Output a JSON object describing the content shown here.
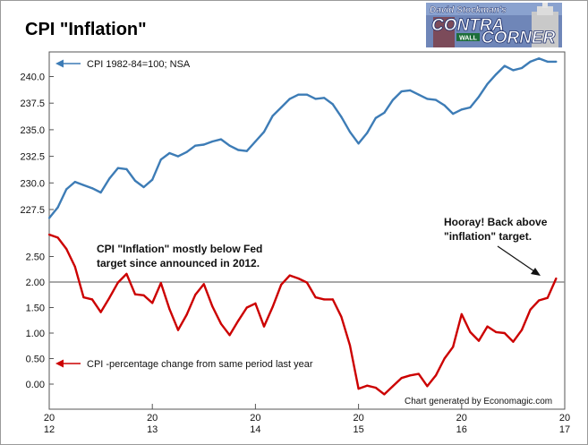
{
  "title": "CPI \"Inflation\"",
  "logo": {
    "line1": "David Stockman's",
    "line2": "CONTRA",
    "line3": "CORNER",
    "sign": "WALL"
  },
  "footer": "Chart generated by Economagic.com",
  "colors": {
    "cpi_level": "#3d7cb6",
    "cpi_yoy": "#cc0000",
    "target_line": "#8c8c8c",
    "grid_frame": "#555555"
  },
  "chart_data": [
    {
      "type": "line",
      "name": "CPI 1982-84=100; NSA",
      "legend_label": "CPI 1982-84=100; NSA",
      "yticks": [
        "227.5",
        "230.0",
        "232.5",
        "235.0",
        "237.5",
        "240.0"
      ],
      "ylim": [
        225.8,
        242.0
      ],
      "x": [
        "2012-01",
        "2012-02",
        "2012-03",
        "2012-04",
        "2012-05",
        "2012-06",
        "2012-07",
        "2012-08",
        "2012-09",
        "2012-10",
        "2012-11",
        "2012-12",
        "2013-01",
        "2013-02",
        "2013-03",
        "2013-04",
        "2013-05",
        "2013-06",
        "2013-07",
        "2013-08",
        "2013-09",
        "2013-10",
        "2013-11",
        "2013-12",
        "2014-01",
        "2014-02",
        "2014-03",
        "2014-04",
        "2014-05",
        "2014-06",
        "2014-07",
        "2014-08",
        "2014-09",
        "2014-10",
        "2014-11",
        "2014-12",
        "2015-01",
        "2015-02",
        "2015-03",
        "2015-04",
        "2015-05",
        "2015-06",
        "2015-07",
        "2015-08",
        "2015-09",
        "2015-10",
        "2015-11",
        "2015-12",
        "2016-01",
        "2016-02",
        "2016-03",
        "2016-04",
        "2016-05",
        "2016-06",
        "2016-07",
        "2016-08",
        "2016-09",
        "2016-10",
        "2016-11",
        "2016-12"
      ],
      "values": [
        226.7,
        227.7,
        229.4,
        230.1,
        229.8,
        229.5,
        229.1,
        230.4,
        231.4,
        231.3,
        230.2,
        229.6,
        230.3,
        232.2,
        232.8,
        232.5,
        232.9,
        233.5,
        233.6,
        233.9,
        234.1,
        233.5,
        233.1,
        233.0,
        233.9,
        234.8,
        236.3,
        237.1,
        237.9,
        238.3,
        238.3,
        237.9,
        238.0,
        237.4,
        236.2,
        234.8,
        233.7,
        234.7,
        236.1,
        236.6,
        237.8,
        238.6,
        238.7,
        238.3,
        237.9,
        237.8,
        237.3,
        236.5,
        236.9,
        237.1,
        238.1,
        239.3,
        240.2,
        241.0,
        240.6,
        240.8,
        241.4,
        241.7,
        241.4,
        241.4
      ]
    },
    {
      "type": "line",
      "name": "CPI -percentage change from same period last year",
      "legend_label": "CPI -percentage change from same period last year",
      "yticks": [
        "0.00",
        "0.50",
        "1.00",
        "1.50",
        "2.00",
        "2.50"
      ],
      "ylim": [
        -0.6,
        2.95
      ],
      "target": 2.0,
      "x": [
        "2012-01",
        "2012-02",
        "2012-03",
        "2012-04",
        "2012-05",
        "2012-06",
        "2012-07",
        "2012-08",
        "2012-09",
        "2012-10",
        "2012-11",
        "2012-12",
        "2013-01",
        "2013-02",
        "2013-03",
        "2013-04",
        "2013-05",
        "2013-06",
        "2013-07",
        "2013-08",
        "2013-09",
        "2013-10",
        "2013-11",
        "2013-12",
        "2014-01",
        "2014-02",
        "2014-03",
        "2014-04",
        "2014-05",
        "2014-06",
        "2014-07",
        "2014-08",
        "2014-09",
        "2014-10",
        "2014-11",
        "2014-12",
        "2015-01",
        "2015-02",
        "2015-03",
        "2015-04",
        "2015-05",
        "2015-06",
        "2015-07",
        "2015-08",
        "2015-09",
        "2015-10",
        "2015-11",
        "2015-12",
        "2016-01",
        "2016-02",
        "2016-03",
        "2016-04",
        "2016-05",
        "2016-06",
        "2016-07",
        "2016-08",
        "2016-09",
        "2016-10",
        "2016-11",
        "2016-12"
      ],
      "values": [
        2.93,
        2.87,
        2.65,
        2.3,
        1.7,
        1.66,
        1.41,
        1.69,
        1.99,
        2.16,
        1.76,
        1.74,
        1.59,
        1.98,
        1.47,
        1.06,
        1.36,
        1.75,
        1.96,
        1.52,
        1.18,
        0.96,
        1.24,
        1.5,
        1.58,
        1.13,
        1.51,
        1.95,
        2.13,
        2.07,
        1.99,
        1.7,
        1.66,
        1.66,
        1.32,
        0.76,
        -0.09,
        -0.03,
        -0.07,
        -0.2,
        -0.04,
        0.12,
        0.17,
        0.2,
        -0.04,
        0.17,
        0.5,
        0.73,
        1.37,
        1.02,
        0.85,
        1.13,
        1.02,
        1.0,
        0.83,
        1.06,
        1.46,
        1.64,
        1.69,
        2.07
      ]
    }
  ],
  "x_axis": {
    "ticks": [
      [
        "20",
        "12"
      ],
      [
        "20",
        "13"
      ],
      [
        "20",
        "14"
      ],
      [
        "20",
        "15"
      ],
      [
        "20",
        "16"
      ],
      [
        "20",
        "17"
      ]
    ]
  },
  "annotations": {
    "below_target_line1": "CPI \"Inflation\" mostly below Fed",
    "below_target_line2": "target since announced in 2012.",
    "hooray_line1": "Hooray! Back above",
    "hooray_line2": "\"inflation\" target."
  }
}
